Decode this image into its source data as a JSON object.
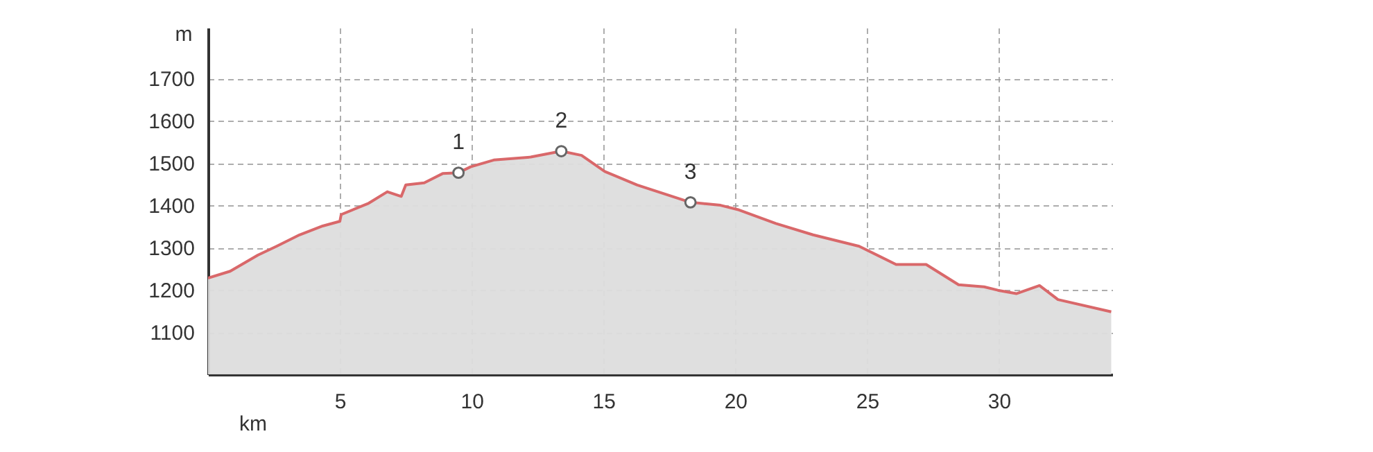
{
  "chart_data": {
    "type": "area",
    "xlabel": "km",
    "ylabel": "m",
    "x": [
      0,
      0.84,
      1.89,
      2.6,
      3.47,
      4.35,
      5,
      5.05,
      6.1,
      6.8,
      7.33,
      7.5,
      8.2,
      8.9,
      9.5,
      9.96,
      10.84,
      12.24,
      13.4,
      14.17,
      15.05,
      16.28,
      18.3,
      19.44,
      20.14,
      21.54,
      22.95,
      24.7,
      26.1,
      27.24,
      28.47,
      29.44,
      29.96,
      30.66,
      31.54,
      32.24,
      34.26
    ],
    "series": [
      {
        "color": "#d9686a",
        "values": [
          1228,
          1244,
          1282,
          1303,
          1330,
          1351,
          1362,
          1378,
          1405,
          1432,
          1421,
          1448,
          1453,
          1475,
          1477,
          1491,
          1507,
          1514,
          1528,
          1518,
          1480,
          1448,
          1407,
          1400,
          1389,
          1357,
          1330,
          1303,
          1260,
          1260,
          1212,
          1207,
          1199,
          1191,
          1210,
          1177,
          1148
        ]
      }
    ],
    "xlim": [
      0,
      34.3
    ],
    "ylim": [
      1000,
      1820
    ],
    "xticks": [
      5,
      10,
      15,
      20,
      25,
      30
    ],
    "yticks": [
      1100,
      1200,
      1300,
      1400,
      1500,
      1600,
      1700
    ],
    "grid": true,
    "line_style": "solid",
    "marker": "none",
    "annotations": [
      {
        "text": "1",
        "x": 9.5,
        "y": 1477
      },
      {
        "text": "2",
        "x": 13.4,
        "y": 1528
      },
      {
        "text": "3",
        "x": 18.3,
        "y": 1407
      }
    ]
  }
}
